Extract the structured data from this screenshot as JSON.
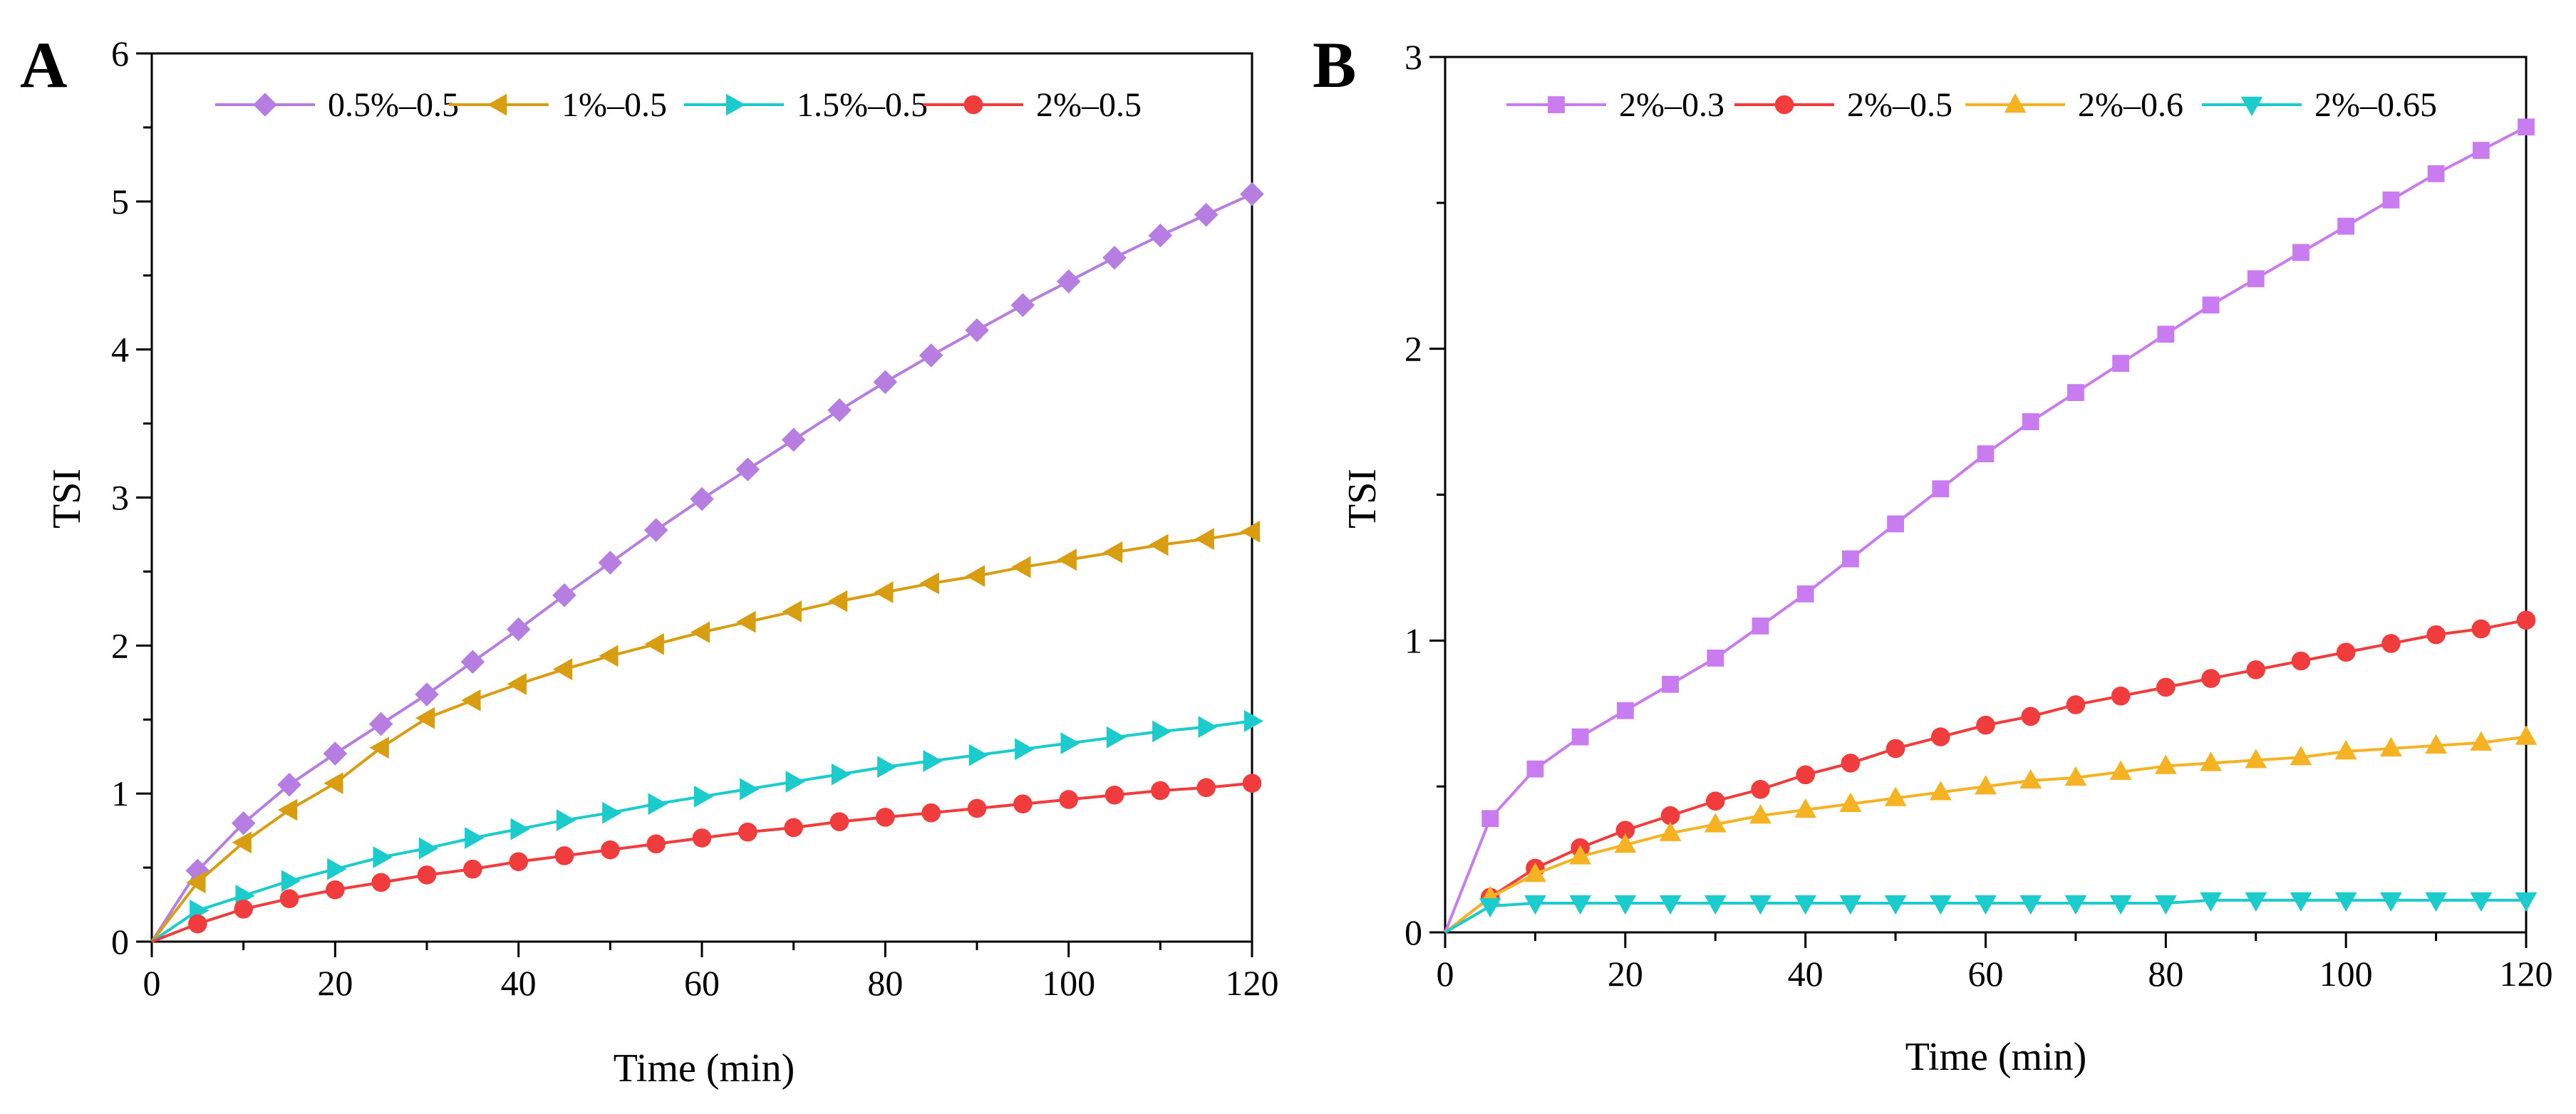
{
  "chart_data": [
    {
      "type": "line",
      "panel_label": "A",
      "xlabel": "Time (min)",
      "ylabel": "TSI",
      "xlim": [
        0,
        120
      ],
      "ylim": [
        0,
        6
      ],
      "xticks": [
        "0",
        "20",
        "40",
        "60",
        "80",
        "100",
        "120"
      ],
      "yticks": [
        "0",
        "1",
        "2",
        "3",
        "4",
        "5",
        "6"
      ],
      "legend_position": "top",
      "x": [
        0,
        5,
        10,
        15,
        20,
        25,
        30,
        35,
        40,
        45,
        50,
        55,
        60,
        65,
        70,
        75,
        80,
        85,
        90,
        95,
        100,
        105,
        110,
        115,
        120
      ],
      "series": [
        {
          "name": "0.5%–0.5",
          "color": "#b57ee0",
          "marker": "diamond",
          "values": [
            0,
            0.48,
            0.8,
            1.06,
            1.27,
            1.47,
            1.67,
            1.89,
            2.11,
            2.34,
            2.56,
            2.78,
            2.99,
            3.19,
            3.39,
            3.59,
            3.78,
            3.96,
            4.13,
            4.3,
            4.46,
            4.62,
            4.77,
            4.91,
            5.05
          ]
        },
        {
          "name": "1%–0.5",
          "color": "#d99d12",
          "marker": "triangle-left",
          "values": [
            0,
            0.4,
            0.67,
            0.89,
            1.07,
            1.31,
            1.51,
            1.63,
            1.74,
            1.84,
            1.93,
            2.01,
            2.09,
            2.16,
            2.23,
            2.3,
            2.36,
            2.42,
            2.47,
            2.53,
            2.58,
            2.63,
            2.68,
            2.72,
            2.77
          ]
        },
        {
          "name": "1.5%–0.5",
          "color": "#1ccbcb",
          "marker": "triangle-right",
          "values": [
            0,
            0.21,
            0.31,
            0.41,
            0.49,
            0.57,
            0.63,
            0.7,
            0.76,
            0.82,
            0.87,
            0.93,
            0.98,
            1.03,
            1.08,
            1.13,
            1.18,
            1.22,
            1.26,
            1.3,
            1.34,
            1.38,
            1.42,
            1.45,
            1.49
          ]
        },
        {
          "name": "2%–0.5",
          "color": "#f03c3c",
          "marker": "circle",
          "values": [
            0,
            0.12,
            0.22,
            0.29,
            0.35,
            0.4,
            0.45,
            0.49,
            0.54,
            0.58,
            0.62,
            0.66,
            0.7,
            0.74,
            0.77,
            0.81,
            0.84,
            0.87,
            0.9,
            0.93,
            0.96,
            0.99,
            1.02,
            1.04,
            1.07
          ]
        }
      ]
    },
    {
      "type": "line",
      "panel_label": "B",
      "xlabel": "Time (min)",
      "ylabel": "TSI",
      "xlim": [
        0,
        120
      ],
      "ylim": [
        0,
        3
      ],
      "xticks": [
        "0",
        "20",
        "40",
        "60",
        "80",
        "100",
        "120"
      ],
      "yticks": [
        "0",
        "1",
        "2",
        "3"
      ],
      "legend_position": "top",
      "x": [
        0,
        5,
        10,
        15,
        20,
        25,
        30,
        35,
        40,
        45,
        50,
        55,
        60,
        65,
        70,
        75,
        80,
        85,
        90,
        95,
        100,
        105,
        110,
        115,
        120
      ],
      "series": [
        {
          "name": "2%–0.3",
          "color": "#c87cf0",
          "marker": "square",
          "values": [
            0,
            0.39,
            0.56,
            0.67,
            0.76,
            0.85,
            0.94,
            1.05,
            1.16,
            1.28,
            1.4,
            1.52,
            1.64,
            1.75,
            1.85,
            1.95,
            2.05,
            2.15,
            2.24,
            2.33,
            2.42,
            2.51,
            2.6,
            2.68,
            2.76
          ]
        },
        {
          "name": "2%–0.5",
          "color": "#f03c3c",
          "marker": "circle",
          "values": [
            0,
            0.12,
            0.22,
            0.29,
            0.35,
            0.4,
            0.45,
            0.49,
            0.54,
            0.58,
            0.63,
            0.67,
            0.71,
            0.74,
            0.78,
            0.81,
            0.84,
            0.87,
            0.9,
            0.93,
            0.96,
            0.99,
            1.02,
            1.04,
            1.07
          ]
        },
        {
          "name": "2%–0.6",
          "color": "#f5b323",
          "marker": "triangle-up",
          "values": [
            0,
            0.12,
            0.2,
            0.26,
            0.3,
            0.34,
            0.37,
            0.4,
            0.42,
            0.44,
            0.46,
            0.48,
            0.5,
            0.52,
            0.53,
            0.55,
            0.57,
            0.58,
            0.59,
            0.6,
            0.62,
            0.63,
            0.64,
            0.65,
            0.67
          ]
        },
        {
          "name": "2%–0.65",
          "color": "#1ccbcb",
          "marker": "triangle-down",
          "values": [
            0,
            0.09,
            0.1,
            0.1,
            0.1,
            0.1,
            0.1,
            0.1,
            0.1,
            0.1,
            0.1,
            0.1,
            0.1,
            0.1,
            0.1,
            0.1,
            0.1,
            0.11,
            0.11,
            0.11,
            0.11,
            0.11,
            0.11,
            0.11,
            0.11
          ]
        }
      ]
    }
  ]
}
